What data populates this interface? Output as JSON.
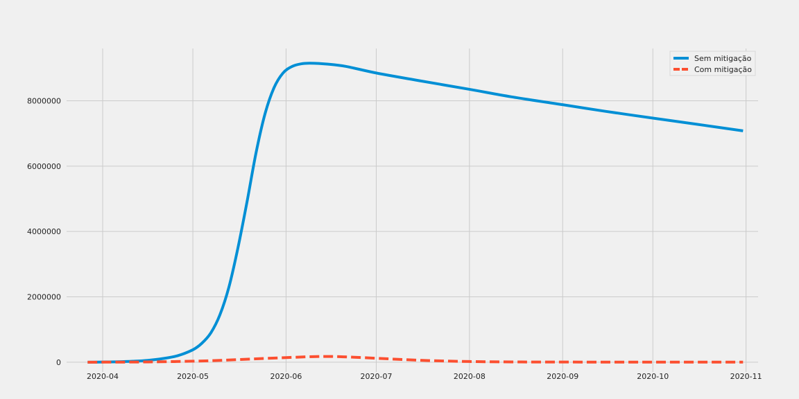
{
  "chart_data": {
    "type": "line",
    "title": "",
    "xlabel": "",
    "ylabel": "",
    "x_axis_type": "date",
    "xlim": [
      "2020-03-20",
      "2020-11-05"
    ],
    "ylim": [
      -300000,
      9600000
    ],
    "x_ticks": [
      "2020-04-01",
      "2020-05-01",
      "2020-06-01",
      "2020-07-01",
      "2020-08-01",
      "2020-09-01",
      "2020-10-01",
      "2020-11-01"
    ],
    "x_tick_labels": [
      "2020-04",
      "2020-05",
      "2020-06",
      "2020-07",
      "2020-08",
      "2020-09",
      "2020-10",
      "2020-11"
    ],
    "y_ticks": [
      0,
      2000000,
      4000000,
      6000000,
      8000000
    ],
    "y_tick_labels": [
      "0",
      "2000000",
      "4000000",
      "6000000",
      "8000000"
    ],
    "grid": true,
    "legend_position": "top-right",
    "background_color": "#f0f0f0",
    "grid_color": "#cbcbcb",
    "series": [
      {
        "name": "Sem mitigação",
        "color": "#008fd5",
        "line_style": "solid",
        "x": [
          "2020-03-27",
          "2020-04-01",
          "2020-04-06",
          "2020-04-11",
          "2020-04-16",
          "2020-04-21",
          "2020-04-26",
          "2020-05-01",
          "2020-05-04",
          "2020-05-07",
          "2020-05-10",
          "2020-05-13",
          "2020-05-16",
          "2020-05-19",
          "2020-05-22",
          "2020-05-25",
          "2020-05-28",
          "2020-05-31",
          "2020-06-03",
          "2020-06-06",
          "2020-06-09",
          "2020-06-15",
          "2020-06-21",
          "2020-07-01",
          "2020-07-15",
          "2020-08-01",
          "2020-08-15",
          "2020-09-01",
          "2020-09-15",
          "2020-10-01",
          "2020-10-15",
          "2020-10-31"
        ],
        "y": [
          0,
          5000,
          12000,
          28000,
          55000,
          110000,
          200000,
          380000,
          580000,
          900000,
          1450000,
          2300000,
          3500000,
          4900000,
          6400000,
          7600000,
          8400000,
          8850000,
          9050000,
          9130000,
          9150000,
          9120000,
          9050000,
          8850000,
          8620000,
          8350000,
          8120000,
          7880000,
          7680000,
          7470000,
          7290000,
          7080000
        ]
      },
      {
        "name": "Com mitigação",
        "color": "#fc4f30",
        "line_style": "dashed",
        "x": [
          "2020-03-27",
          "2020-04-10",
          "2020-04-20",
          "2020-05-01",
          "2020-05-10",
          "2020-05-20",
          "2020-06-01",
          "2020-06-10",
          "2020-06-15",
          "2020-06-20",
          "2020-07-01",
          "2020-07-10",
          "2020-07-20",
          "2020-08-01",
          "2020-08-15",
          "2020-09-01",
          "2020-10-01",
          "2020-10-31"
        ],
        "y": [
          0,
          4000,
          12000,
          30000,
          55000,
          95000,
          140000,
          170000,
          175000,
          165000,
          120000,
          80000,
          45000,
          20000,
          8000,
          4000,
          2000,
          1500
        ]
      }
    ]
  }
}
